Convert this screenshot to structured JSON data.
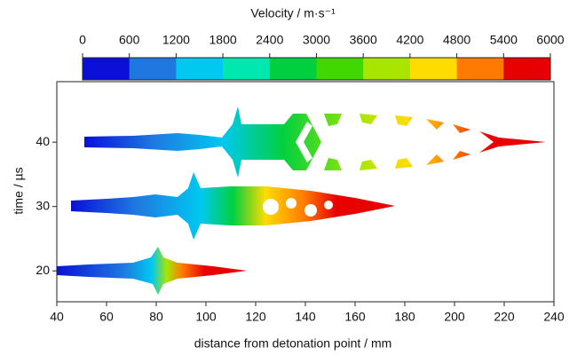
{
  "chart_data": {
    "type": "image",
    "colorbar": {
      "label": "Velocity / m·s⁻¹",
      "ticks": [
        0,
        600,
        1200,
        1800,
        2400,
        3000,
        3600,
        4200,
        4800,
        5400,
        6000
      ],
      "colors": [
        "#0a10d8",
        "#1f78e0",
        "#00c8f0",
        "#00e8b0",
        "#00d040",
        "#40d800",
        "#a8e600",
        "#ffdc00",
        "#ff7a00",
        "#e80000"
      ]
    },
    "x_label": "distance from detonation point / mm",
    "y_label": "time / µs",
    "xlim": [
      40,
      240
    ],
    "xticks": [
      40,
      60,
      80,
      100,
      120,
      140,
      160,
      180,
      200,
      220,
      240
    ],
    "ylim": [
      15.2,
      49.4
    ],
    "yticks": [
      20,
      30,
      40
    ]
  }
}
